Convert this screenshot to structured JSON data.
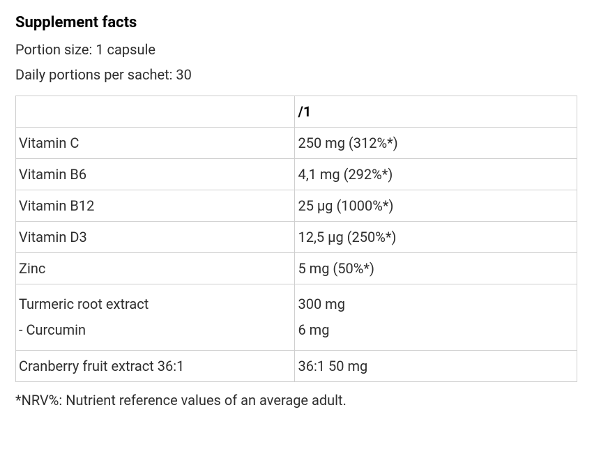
{
  "title": "Supplement facts",
  "portion_line": "Portion size: 1 capsule",
  "servings_line": "Daily portions per sachet: 30",
  "table": {
    "header_name": "",
    "header_value": "/1",
    "col_widths": {
      "name": 400,
      "value": 404
    },
    "border_color": "#cfcfcf",
    "text_color": "#2e2e2e",
    "fontsize": 20,
    "rows": [
      {
        "name": "Vitamin C",
        "value": "250 mg (312%*)"
      },
      {
        "name": "Vitamin B6",
        "value": "4,1 mg (292%*)"
      },
      {
        "name": "Vitamin B12",
        "value": "25 µg (1000%*)"
      },
      {
        "name": "Vitamin D3",
        "value": "12,5 µg (250%*)"
      },
      {
        "name": "Zinc",
        "value": "5 mg (50%*)"
      },
      {
        "name": "Turmeric root extract\n- Curcumin",
        "value": "300 mg\n6 mg"
      },
      {
        "name": "Cranberry fruit extract 36:1",
        "value": "36:1 50 mg"
      }
    ]
  },
  "footnote": "*NRV%: Nutrient reference values of an average adult."
}
